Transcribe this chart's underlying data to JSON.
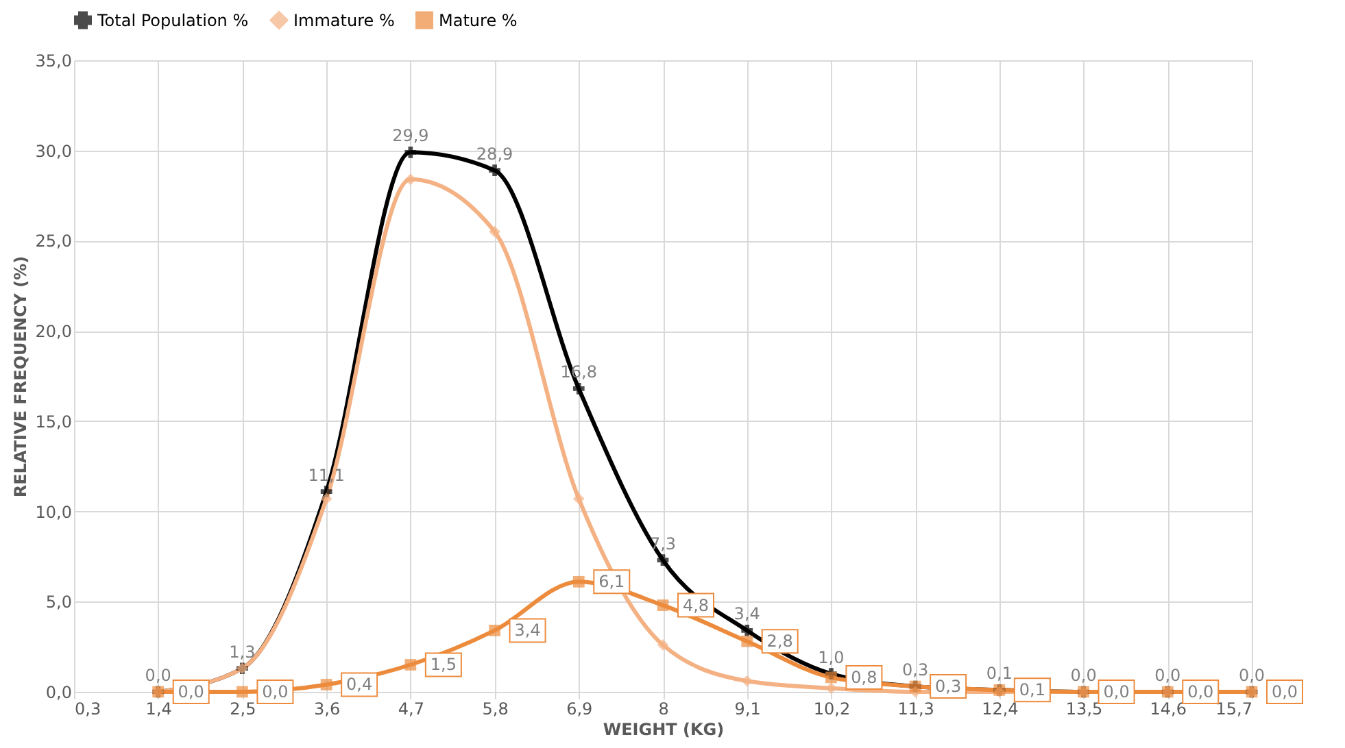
{
  "chart_data": {
    "type": "line",
    "xlabel": "WEIGHT (KG)",
    "ylabel": "RELATIVE FREQUENCY (%)",
    "categories": [
      "0,3",
      "1,4",
      "2,5",
      "3,6",
      "4,7",
      "5,8",
      "6,9",
      "8",
      "9,1",
      "10,2",
      "11,3",
      "12,4",
      "13,5",
      "14,6",
      "15,7"
    ],
    "ylim": [
      0,
      35
    ],
    "yticks": [
      {
        "value": 0,
        "label": "0,0"
      },
      {
        "value": 5,
        "label": "5,0"
      },
      {
        "value": 10,
        "label": "10,0"
      },
      {
        "value": 15,
        "label": "15,0"
      },
      {
        "value": 20,
        "label": "20,0"
      },
      {
        "value": 25,
        "label": "25,0"
      },
      {
        "value": 30,
        "label": "30,0"
      },
      {
        "value": 35,
        "label": "35,0"
      }
    ],
    "grid": true,
    "legend": "top",
    "series": [
      {
        "name": "Total Population %",
        "color": "#000000",
        "marker": "cross",
        "values": [
          null,
          0.0,
          1.3,
          11.1,
          29.9,
          28.9,
          16.8,
          7.3,
          3.4,
          1.0,
          0.3,
          0.1,
          0.0,
          0.0,
          0.0
        ],
        "value_labels": [
          null,
          "0,0",
          "1,3",
          "11,1",
          "29,9",
          "28,9",
          "16,8",
          "7,3",
          "3,4",
          "1,0",
          "0,3",
          "0,1",
          "0,0",
          "0,0",
          "0,0"
        ]
      },
      {
        "name": "Immature %",
        "color": "#f4b183",
        "marker": "diamond",
        "values": [
          null,
          0.0,
          1.3,
          10.7,
          28.4,
          25.5,
          10.7,
          2.6,
          0.6,
          0.2,
          0.0,
          0.0,
          0.0,
          0.0,
          0.0
        ]
      },
      {
        "name": "Mature  %",
        "color": "#ed8b3d",
        "marker": "square",
        "values": [
          null,
          0.0,
          0.0,
          0.4,
          1.5,
          3.4,
          6.1,
          4.8,
          2.8,
          0.8,
          0.3,
          0.1,
          0.0,
          0.0,
          0.0
        ],
        "value_labels": [
          null,
          "0,0",
          "0,0",
          "0,4",
          "1,5",
          "3,4",
          "6,1",
          "4,8",
          "2,8",
          "0,8",
          "0,3",
          "0,1",
          "0,0",
          "0,0",
          "0,0"
        ]
      }
    ]
  }
}
